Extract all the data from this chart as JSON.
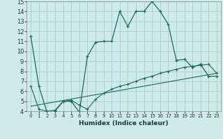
{
  "xlabel": "Humidex (Indice chaleur)",
  "bg_color": "#ceeaea",
  "grid_color": "#a8cece",
  "line_color": "#1a6b5a",
  "xlim": [
    -0.5,
    23.5
  ],
  "ylim": [
    4,
    15
  ],
  "xticks": [
    0,
    1,
    2,
    3,
    4,
    5,
    6,
    7,
    8,
    9,
    10,
    11,
    12,
    13,
    14,
    15,
    16,
    17,
    18,
    19,
    20,
    21,
    22,
    23
  ],
  "yticks": [
    4,
    5,
    6,
    7,
    8,
    9,
    10,
    11,
    12,
    13,
    14,
    15
  ],
  "series1_x": [
    0,
    1,
    2,
    3,
    4,
    5,
    6,
    7,
    8,
    9,
    10,
    11,
    12,
    13,
    14,
    15,
    16,
    17,
    18,
    19,
    20,
    21,
    22,
    23
  ],
  "series1_y": [
    11.5,
    6.5,
    3.9,
    4.0,
    5.0,
    5.0,
    3.9,
    9.5,
    10.9,
    11.0,
    11.0,
    14.0,
    12.5,
    14.0,
    14.0,
    15.0,
    14.0,
    12.7,
    9.1,
    9.2,
    8.4,
    8.7,
    7.5,
    7.5
  ],
  "series2_x": [
    0,
    1,
    2,
    3,
    4,
    5,
    6,
    7,
    8,
    9,
    10,
    11,
    12,
    13,
    14,
    15,
    16,
    17,
    18,
    19,
    20,
    21,
    22,
    23
  ],
  "series2_y": [
    6.5,
    4.2,
    4.0,
    4.1,
    5.0,
    5.1,
    4.6,
    4.2,
    5.2,
    5.8,
    6.2,
    6.5,
    6.7,
    7.0,
    7.3,
    7.5,
    7.8,
    8.0,
    8.2,
    8.4,
    8.5,
    8.6,
    8.7,
    7.8
  ],
  "series3_x": [
    0,
    23
  ],
  "series3_y": [
    4.5,
    7.8
  ]
}
